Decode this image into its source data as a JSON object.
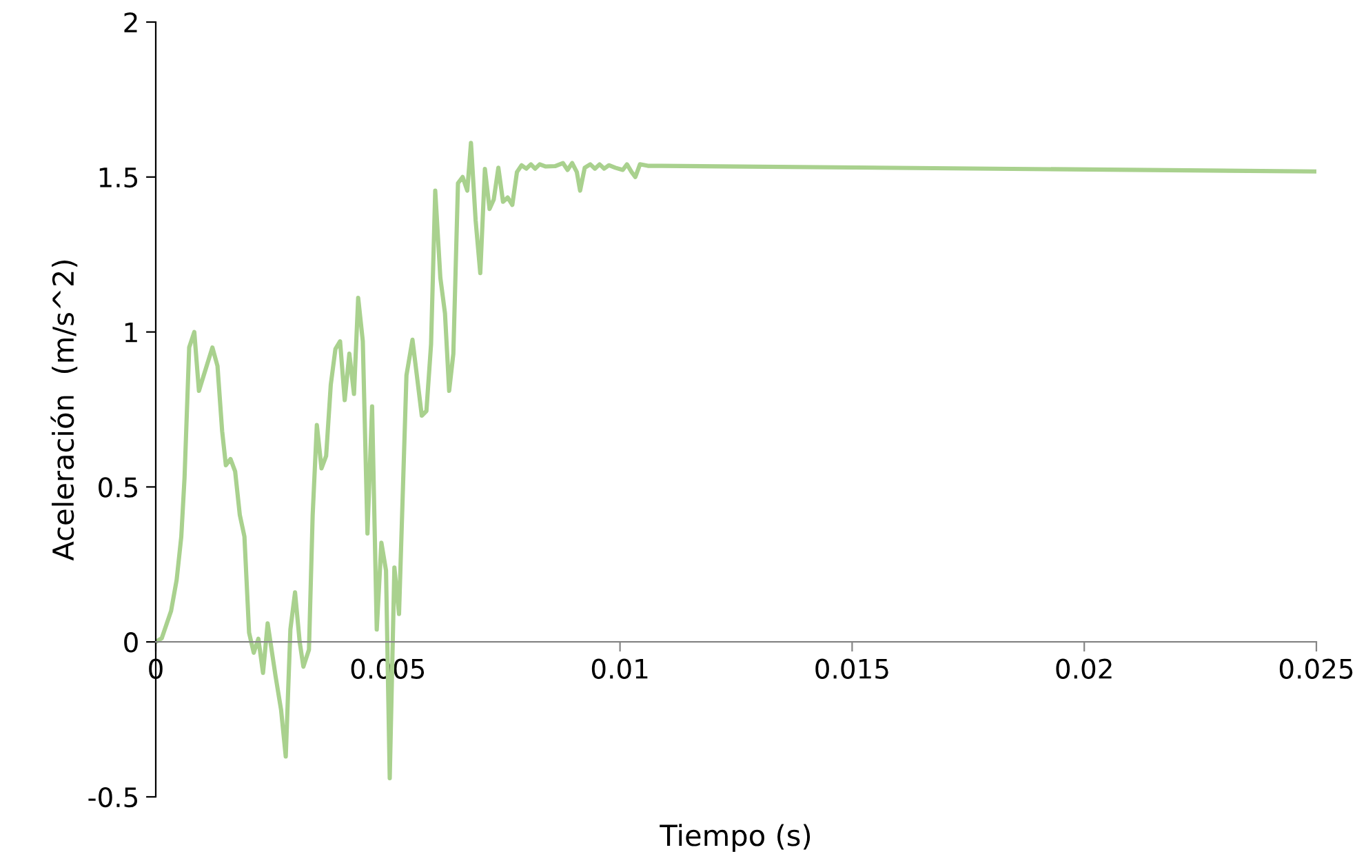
{
  "chart_data": {
    "type": "line",
    "xlabel": "Tiempo (s)",
    "ylabel": "Aceleración  (m/s^2)",
    "xlim": [
      0,
      0.025
    ],
    "xticks": [
      0,
      0.005,
      0.01,
      0.015,
      0.02,
      0.025
    ],
    "ylim": [
      -0.5,
      2
    ],
    "yticks": [
      -0.5,
      0,
      0.5,
      1,
      1.5,
      2
    ],
    "grid": false,
    "marker": "none",
    "line_style": "solid",
    "series": [
      {
        "color": "#a9d18e",
        "x": [
          0,
          0.00013,
          0.00033,
          0.00045,
          0.00055,
          0.00062,
          0.00072,
          0.00083,
          0.00093,
          0.00122,
          0.00133,
          0.00143,
          0.00151,
          0.00161,
          0.00171,
          0.00181,
          0.00191,
          0.00201,
          0.00211,
          0.00221,
          0.00231,
          0.00241,
          0.00258,
          0.0027,
          0.0028,
          0.0029,
          0.003,
          0.0031,
          0.00318,
          0.0033,
          0.00338,
          0.00347,
          0.00357,
          0.00367,
          0.00377,
          0.00387,
          0.00397,
          0.00407,
          0.00417,
          0.00427,
          0.00436,
          0.00446,
          0.00456,
          0.00466,
          0.00476,
          0.00486,
          0.00496,
          0.00504,
          0.00514,
          0.00524,
          0.0054,
          0.00553,
          0.00573,
          0.00583,
          0.00593,
          0.00602,
          0.00613,
          0.00623,
          0.00632,
          0.00641,
          0.00651,
          0.00661,
          0.00671,
          0.00679,
          0.00689,
          0.00699,
          0.00709,
          0.00719,
          0.00728,
          0.00738,
          0.00748,
          0.00758,
          0.00768,
          0.00778,
          0.00788,
          0.00798,
          0.00808,
          0.00817,
          0.00827,
          0.0084,
          0.0086,
          0.00877,
          0.00887,
          0.00897,
          0.00907,
          0.00914,
          0.00924,
          0.00936,
          0.00946,
          0.00956,
          0.00966,
          0.00976,
          0.0099,
          0.01006,
          0.01015,
          0.01025,
          0.01033,
          0.01043,
          0.0106,
          0.0109,
          0.025
        ],
        "values": [
          0,
          0.012,
          0.1,
          0.2,
          0.34,
          0.53,
          0.95,
          1.0,
          0.81,
          0.95,
          0.89,
          0.68,
          0.57,
          0.59,
          0.55,
          0.41,
          0.34,
          0.03,
          -0.035,
          0.01,
          -0.1,
          0.06,
          -0.11,
          -0.22,
          -0.37,
          0.04,
          0.16,
          0,
          -0.08,
          -0.025,
          0.41,
          0.7,
          0.56,
          0.6,
          0.83,
          0.945,
          0.97,
          0.78,
          0.93,
          0.8,
          1.11,
          0.97,
          0.35,
          0.76,
          0.04,
          0.32,
          0.23,
          -0.44,
          0.24,
          0.09,
          0.86,
          0.975,
          0.73,
          0.745,
          0.96,
          1.456,
          1.175,
          1.06,
          0.81,
          0.93,
          1.48,
          1.5,
          1.456,
          1.61,
          1.36,
          1.19,
          1.526,
          1.397,
          1.427,
          1.53,
          1.42,
          1.434,
          1.41,
          1.516,
          1.538,
          1.527,
          1.541,
          1.527,
          1.541,
          1.534,
          1.535,
          1.545,
          1.523,
          1.545,
          1.516,
          1.456,
          1.53,
          1.541,
          1.527,
          1.541,
          1.527,
          1.538,
          1.53,
          1.523,
          1.541,
          1.516,
          1.5,
          1.541,
          1.536,
          1.536,
          1.518
        ]
      }
    ]
  }
}
